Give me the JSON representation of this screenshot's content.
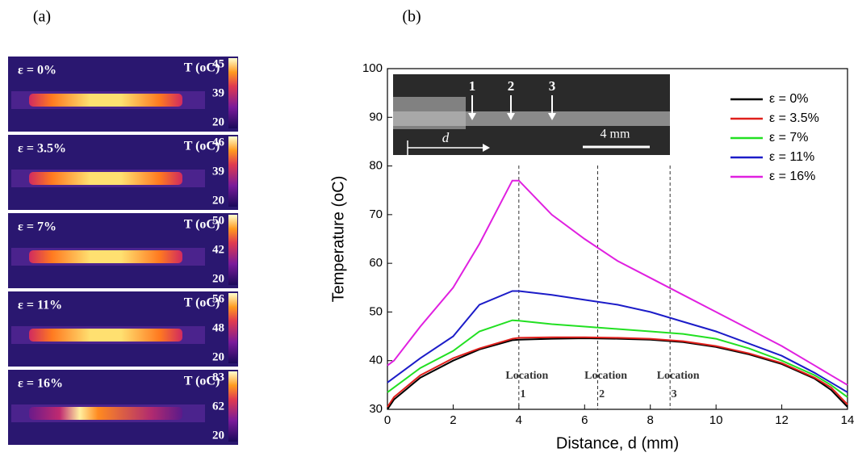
{
  "panel_a": {
    "label": "(a)",
    "images": [
      {
        "strain": "ε = 0%",
        "unit": "T (oC)",
        "colorbar_ticks": [
          45,
          39,
          20
        ]
      },
      {
        "strain": "ε = 3.5%",
        "unit": "T (oC)",
        "colorbar_ticks": [
          46,
          39,
          20
        ]
      },
      {
        "strain": "ε = 7%",
        "unit": "T (oC)",
        "colorbar_ticks": [
          50,
          42,
          20
        ]
      },
      {
        "strain": "ε = 11%",
        "unit": "T (oC)",
        "colorbar_ticks": [
          56,
          48,
          20
        ]
      },
      {
        "strain": "ε = 16%",
        "unit": "T (oC)",
        "colorbar_ticks": [
          83,
          62,
          20
        ]
      }
    ]
  },
  "chart_data": {
    "type": "line",
    "panel_label": "(b)",
    "x_label": "Distance, d (mm)",
    "y_label": "Temperature (oC)",
    "x": [
      0,
      0.2,
      1,
      2,
      2.8,
      3.8,
      4,
      5,
      6,
      7,
      8,
      9,
      10,
      11,
      12,
      13,
      13.5,
      14
    ],
    "series": [
      {
        "name": "ε = 0%",
        "color": "#000000",
        "values": [
          30,
          32,
          36.5,
          40,
          42.3,
          44.2,
          44.3,
          44.5,
          44.6,
          44.5,
          44.3,
          43.8,
          42.8,
          41.3,
          39.3,
          36.3,
          34,
          30.5
        ]
      },
      {
        "name": "ε = 3.5%",
        "color": "#e0201c",
        "values": [
          30.5,
          32.5,
          37,
          40.5,
          42.5,
          44.5,
          44.7,
          44.8,
          44.8,
          44.7,
          44.5,
          44,
          43,
          41.5,
          39.5,
          36.5,
          34.5,
          31
        ]
      },
      {
        "name": "ε = 7%",
        "color": "#22e022",
        "values": [
          33.5,
          34.5,
          38.5,
          42,
          46,
          48.3,
          48.2,
          47.5,
          47,
          46.5,
          46,
          45.5,
          44.5,
          42.5,
          40,
          37,
          35,
          32.5
        ]
      },
      {
        "name": "ε = 11%",
        "color": "#1c1cc8",
        "values": [
          35.5,
          36.5,
          40.5,
          45,
          51.5,
          54.3,
          54.3,
          53.5,
          52.5,
          51.5,
          50,
          48,
          46,
          43.5,
          41,
          37.5,
          35.5,
          33.5
        ]
      },
      {
        "name": "ε = 16%",
        "color": "#e020e0",
        "values": [
          39,
          40,
          47,
          55,
          64,
          77,
          77,
          70,
          65,
          60.5,
          57,
          53.5,
          50,
          46.5,
          43,
          39,
          37,
          35
        ]
      }
    ],
    "xlim": [
      0,
      14
    ],
    "ylim": [
      30,
      100
    ],
    "xticks": [
      0,
      2,
      4,
      6,
      8,
      10,
      12,
      14
    ],
    "yticks": [
      30,
      40,
      50,
      60,
      70,
      80,
      90,
      100
    ],
    "locations": [
      {
        "x": 4,
        "text": "Location",
        "number": "1"
      },
      {
        "x": 6.4,
        "text": "Location",
        "number": "2"
      },
      {
        "x": 8.6,
        "text": "Location",
        "number": "3"
      }
    ],
    "inset": {
      "markers": [
        "1",
        "2",
        "3"
      ],
      "scale_bar": "4 mm",
      "distance": "d"
    }
  }
}
